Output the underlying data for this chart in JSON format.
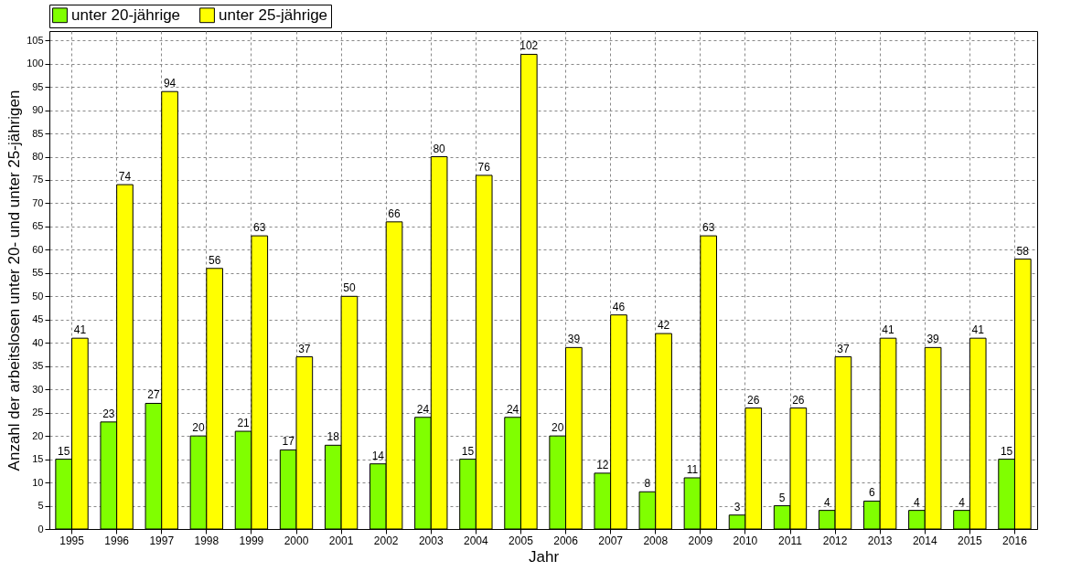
{
  "chart_data": {
    "type": "bar",
    "xlabel": "Jahr",
    "ylabel": "Anzahl der arbeitslosen unter 20- und unter 25-jährigen",
    "categories": [
      "1995",
      "1996",
      "1997",
      "1998",
      "1999",
      "2000",
      "2001",
      "2002",
      "2003",
      "2004",
      "2005",
      "2006",
      "2007",
      "2008",
      "2009",
      "2010",
      "2011",
      "2012",
      "2013",
      "2014",
      "2015",
      "2016"
    ],
    "series": [
      {
        "name": "unter 20-jährige",
        "color": "#80ff00",
        "values": [
          15,
          23,
          27,
          20,
          21,
          17,
          18,
          14,
          24,
          15,
          24,
          20,
          12,
          8,
          11,
          3,
          5,
          4,
          6,
          4,
          4,
          15
        ]
      },
      {
        "name": "unter 25-jährige",
        "color": "#ffff00",
        "values": [
          41,
          74,
          94,
          56,
          63,
          37,
          50,
          66,
          80,
          76,
          102,
          39,
          46,
          42,
          63,
          26,
          26,
          37,
          41,
          39,
          41,
          58
        ]
      }
    ],
    "ylim": [
      0,
      107
    ],
    "yticks": [
      0,
      5,
      10,
      15,
      20,
      25,
      30,
      35,
      40,
      45,
      50,
      55,
      60,
      65,
      70,
      75,
      80,
      85,
      90,
      95,
      100,
      105
    ],
    "grid": true,
    "legend": "top",
    "data_labels": true
  }
}
